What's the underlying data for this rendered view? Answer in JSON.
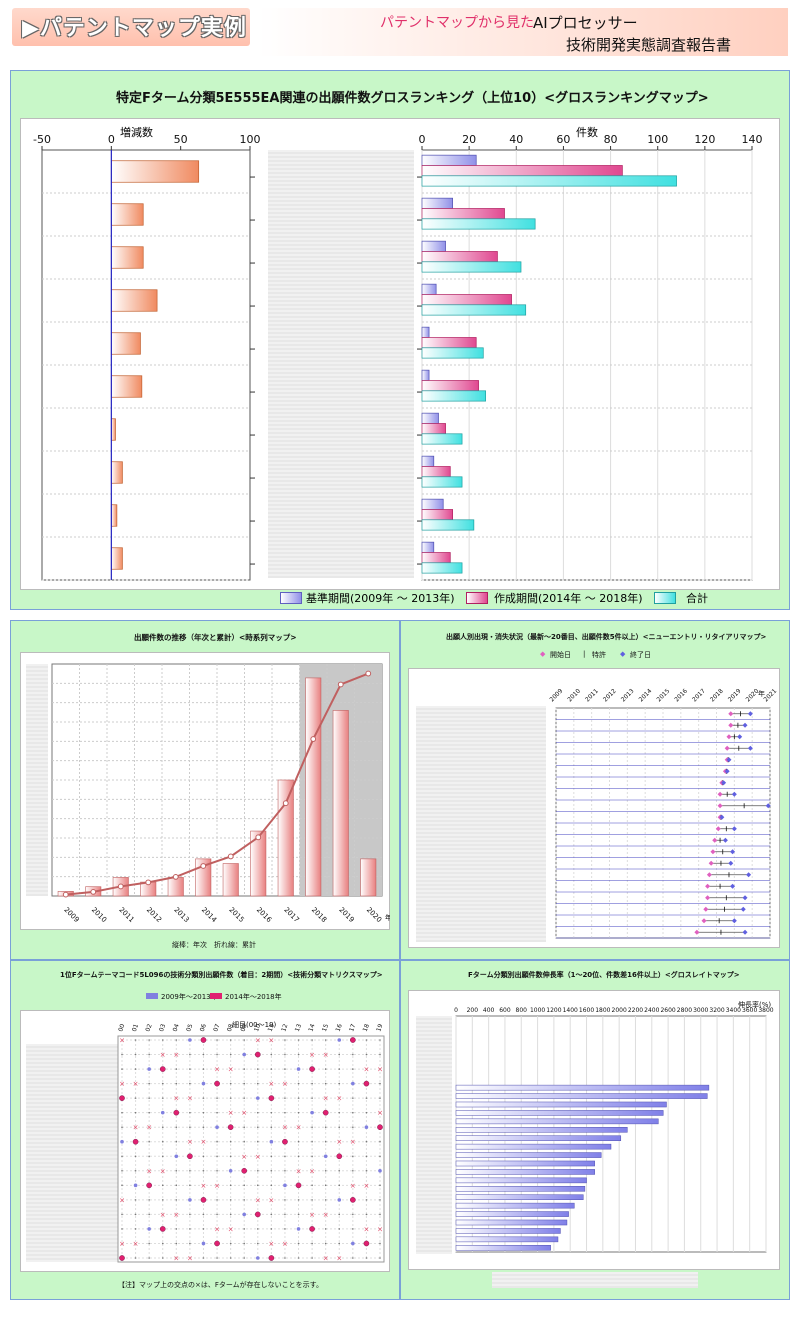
{
  "header": {
    "title": "▶パテントマップ実例",
    "subtitle_pink": "パテントマップから見た",
    "subtitle_black": "AIプロセッサー",
    "subtitle_line2": "技術開発実態調査報告書"
  },
  "colors": {
    "panel_bg": "#c8f7c8",
    "pink_accent": "#e0306a",
    "growth_bar": "#f08a60",
    "base_bar": "#9090e8",
    "create_bar": "#e04890",
    "total_bar": "#40e0e0"
  },
  "main_chart": {
    "title": "特定Fターム分類5E555EA関連の出願件数グロスランキング（上位10）<グロスランキングマップ>",
    "left_axis_label": "増減数",
    "right_axis_label": "件数",
    "legend": [
      "基準期間(2009年 ～ 2013年)",
      "作成期間(2014年 ～ 2018年)",
      "合計"
    ]
  },
  "ts_chart": {
    "title": "出願件数の推移（年次と累計）<時系列マップ>",
    "footer": "縦棒：年次　折れ線：累計",
    "year_unit": "年"
  },
  "entry_chart": {
    "title": "出願人別出現・消失状況（最新～20番目、出願件数5件以上）<ニューエントリ・リタイアリマップ>",
    "legend": [
      "開始日",
      "特許",
      "終了日"
    ],
    "year_unit": "年"
  },
  "matrix_chart": {
    "title": "1位Fタームテーマコード5L096の技術分類別出願件数（着目：2期間）<技術分類マトリクスマップ>",
    "legend": [
      "2009年～2013年",
      "2014年～2018年"
    ],
    "x_header": "細目(00～19)",
    "note": "【注】マップ上の交点の×は、Fタームが存在しないことを示す。"
  },
  "growth_chart": {
    "title": "Fターム分類別出願件数伸長率（1～20位、件数差16件以上）<グロスレイトマップ>",
    "axis_label": "伸長率(%)"
  },
  "chart_data": [
    {
      "type": "bar",
      "name": "増減数",
      "xlim": [
        -50,
        100
      ],
      "ticks": [
        -50,
        0,
        50,
        100
      ],
      "values": [
        63,
        23,
        23,
        33,
        21,
        22,
        3,
        8,
        4,
        8
      ]
    },
    {
      "type": "bar",
      "name": "件数",
      "xlim": [
        0,
        140
      ],
      "ticks": [
        0,
        20,
        40,
        60,
        80,
        100,
        120,
        140
      ],
      "series": [
        {
          "name": "基準期間(2009年 ～ 2013年)",
          "values": [
            23,
            13,
            10,
            6,
            3,
            3,
            7,
            5,
            9,
            5
          ]
        },
        {
          "name": "作成期間(2014年 ～ 2018年)",
          "values": [
            85,
            35,
            32,
            38,
            23,
            24,
            10,
            12,
            13,
            12
          ]
        },
        {
          "name": "合計",
          "values": [
            108,
            48,
            42,
            44,
            26,
            27,
            17,
            17,
            22,
            17
          ]
        }
      ]
    },
    {
      "type": "bar",
      "name": "時系列",
      "categories": [
        "2009",
        "2010",
        "2011",
        "2012",
        "2013",
        "2014",
        "2015",
        "2016",
        "2017",
        "2018",
        "2019",
        "2020"
      ],
      "highlight_from_index": 9,
      "series": [
        {
          "name": "年次",
          "values": [
            1,
            2,
            4,
            3,
            4,
            8,
            7,
            14,
            25,
            47,
            40,
            8
          ]
        },
        {
          "name": "累計",
          "values": [
            1,
            3,
            7,
            10,
            14,
            22,
            29,
            43,
            68,
            115,
            155,
            163
          ]
        }
      ]
    },
    {
      "type": "scatter",
      "name": "ニューエントリ・リタイアリ",
      "x_ticks": [
        "2009",
        "2010",
        "2011",
        "2012",
        "2013",
        "2014",
        "2015",
        "2016",
        "2017",
        "2018",
        "2019",
        "2020",
        "2021"
      ],
      "rows": [
        [
          2018.8,
          2019.9
        ],
        [
          2018.8,
          2019.6
        ],
        [
          2018.7,
          2019.3
        ],
        [
          2018.6,
          2019.9
        ],
        [
          2018.6,
          2018.7
        ],
        [
          2018.5,
          2018.6
        ],
        [
          2018.3,
          2018.4
        ],
        [
          2018.2,
          2019.0
        ],
        [
          2018.2,
          2020.9
        ],
        [
          2018.2,
          2018.3
        ],
        [
          2018.1,
          2019.0
        ],
        [
          2017.9,
          2018.5
        ],
        [
          2017.8,
          2018.9
        ],
        [
          2017.7,
          2018.8
        ],
        [
          2017.6,
          2019.8
        ],
        [
          2017.5,
          2018.9
        ],
        [
          2017.5,
          2019.6
        ],
        [
          2017.4,
          2019.5
        ],
        [
          2017.3,
          2019.0
        ],
        [
          2016.9,
          2019.6
        ]
      ]
    },
    {
      "type": "scatter",
      "name": "技術分類マトリクス",
      "x_ticks": [
        "00",
        "01",
        "02",
        "03",
        "04",
        "05",
        "06",
        "07",
        "08",
        "09",
        "10",
        "11",
        "12",
        "13",
        "14",
        "15",
        "16",
        "17",
        "18",
        "19"
      ],
      "row_count": 16
    },
    {
      "type": "bar",
      "name": "伸長率",
      "xlim": [
        0,
        3800
      ],
      "ticks": [
        0,
        200,
        400,
        600,
        800,
        1000,
        1200,
        1400,
        1600,
        1800,
        2000,
        2200,
        2400,
        2600,
        2800,
        3000,
        3200,
        3400,
        3600,
        3800
      ],
      "values": [
        3100,
        3080,
        2580,
        2540,
        2480,
        2100,
        2020,
        1900,
        1780,
        1700,
        1700,
        1600,
        1580,
        1560,
        1450,
        1380,
        1360,
        1280,
        1250,
        1160
      ]
    }
  ]
}
